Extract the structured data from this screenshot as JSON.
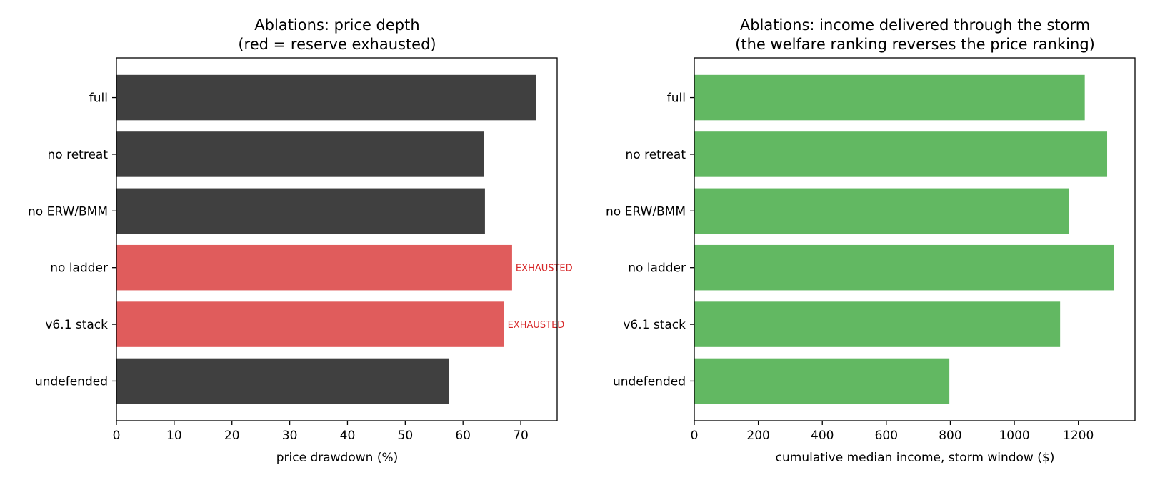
{
  "chart_data": [
    {
      "type": "bar",
      "orientation": "horizontal",
      "title": "Ablations: price depth",
      "subtitle": "(red = reserve exhausted)",
      "xlabel": "price drawdown (%)",
      "ylabel": "",
      "categories": [
        "full",
        "no retreat",
        "no ERW/BMM",
        "no ladder",
        "v6.1 stack",
        "undefended"
      ],
      "values": [
        72.6,
        63.6,
        63.8,
        68.5,
        67.1,
        57.6
      ],
      "exhausted": [
        false,
        false,
        false,
        true,
        true,
        false
      ],
      "annotation_text": "EXHAUSTED",
      "xlim": [
        0,
        76.3
      ],
      "xticks": [
        0,
        10,
        20,
        30,
        40,
        50,
        60,
        70
      ],
      "colors": {
        "normal": "#404040",
        "exhausted": "#e05c5c",
        "annotation": "#d62728"
      },
      "grid": false
    },
    {
      "type": "bar",
      "orientation": "horizontal",
      "title": "Ablations: income delivered through the storm",
      "subtitle": "(the welfare ranking reverses the price ranking)",
      "xlabel": "cumulative median income, storm window ($)",
      "ylabel": "",
      "categories": [
        "full",
        "no retreat",
        "no ERW/BMM",
        "no ladder",
        "v6.1 stack",
        "undefended"
      ],
      "values": [
        1220,
        1290,
        1170,
        1312,
        1143,
        797
      ],
      "xlim": [
        0,
        1377
      ],
      "xticks": [
        0,
        200,
        400,
        600,
        800,
        1000,
        1200
      ],
      "colors": {
        "bar": "#62b862"
      },
      "grid": false
    }
  ]
}
